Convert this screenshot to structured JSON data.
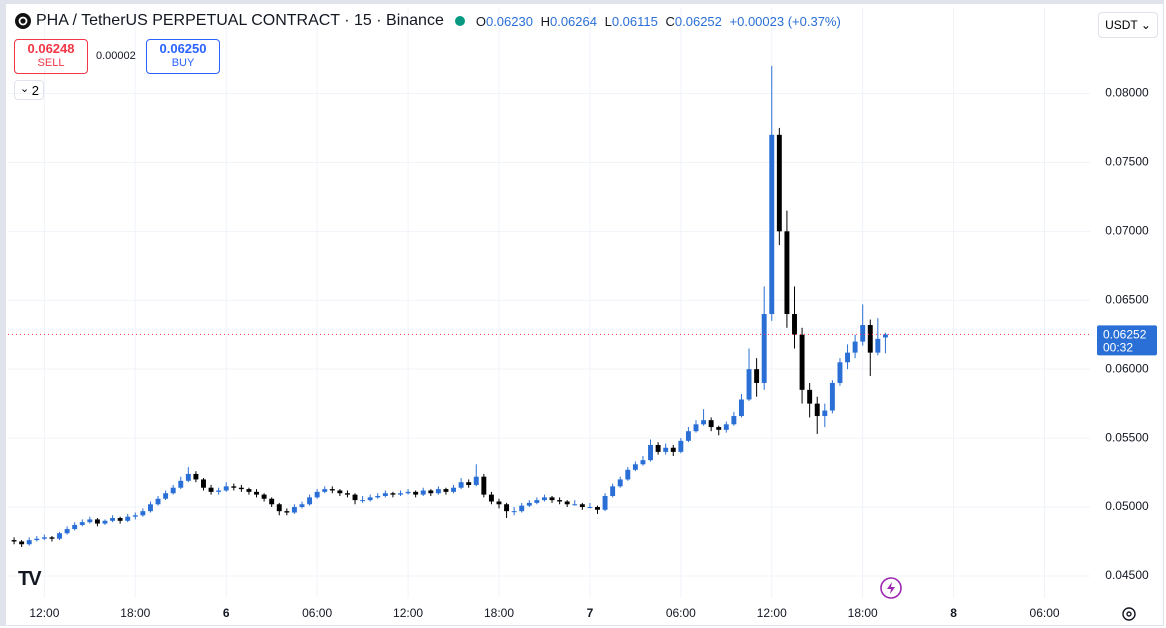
{
  "header": {
    "title": "PHA / TetherUS PERPETUAL CONTRACT · 15 · Binance",
    "o_label": "O",
    "o": "0.06230",
    "h_label": "H",
    "h": "0.06264",
    "l_label": "L",
    "l": "0.06115",
    "c_label": "C",
    "c": "0.06252",
    "change": "+0.00023 (+0.37%)"
  },
  "trade": {
    "sell_price": "0.06248",
    "sell": "SELL",
    "spread": "0.00002",
    "buy_price": "0.06250",
    "buy": "BUY",
    "indicators": "2"
  },
  "currency": "USDT",
  "chart_data": {
    "type": "candlestick",
    "up_color": "#2a6fd6",
    "down_color": "#000000",
    "grid": true,
    "last_price": 0.06252,
    "countdown": "00:32",
    "xlim": [
      9.6,
      81
    ],
    "ylim": [
      0.0434,
      0.0862
    ],
    "xticks": [
      {
        "value": 12,
        "label": "12:00"
      },
      {
        "value": 18,
        "label": "18:00"
      },
      {
        "value": 24,
        "label": "6"
      },
      {
        "value": 30,
        "label": "06:00"
      },
      {
        "value": 36,
        "label": "12:00"
      },
      {
        "value": 42,
        "label": "18:00"
      },
      {
        "value": 48,
        "label": "7"
      },
      {
        "value": 54,
        "label": "06:00"
      },
      {
        "value": 60,
        "label": "12:00"
      },
      {
        "value": 66,
        "label": "18:00"
      },
      {
        "value": 72,
        "label": "8"
      },
      {
        "value": 78,
        "label": "06:00"
      }
    ],
    "yticks": [
      {
        "value": 0.045,
        "label": "0.04500"
      },
      {
        "value": 0.05,
        "label": "0.05000"
      },
      {
        "value": 0.055,
        "label": "0.05500"
      },
      {
        "value": 0.06,
        "label": "0.06000"
      },
      {
        "value": 0.065,
        "label": "0.06500"
      },
      {
        "value": 0.07,
        "label": "0.07000"
      },
      {
        "value": 0.075,
        "label": "0.07500"
      },
      {
        "value": 0.08,
        "label": "0.08000"
      }
    ],
    "x": [
      10,
      10.5,
      11,
      11.5,
      12,
      12.5,
      13,
      13.5,
      14,
      14.5,
      15,
      15.5,
      16,
      16.5,
      17,
      17.5,
      18,
      18.5,
      19,
      19.5,
      20,
      20.5,
      21,
      21.5,
      22,
      22.5,
      23,
      23.5,
      24,
      24.5,
      25,
      25.5,
      26,
      26.5,
      27,
      27.5,
      28,
      28.5,
      29,
      29.5,
      30,
      30.5,
      31,
      31.5,
      32,
      32.5,
      33,
      33.5,
      34,
      34.5,
      35,
      35.5,
      36,
      36.5,
      37,
      37.5,
      38,
      38.5,
      39,
      39.5,
      40,
      40.5,
      41,
      41.5,
      42,
      42.5,
      43,
      43.5,
      44,
      44.5,
      45,
      45.5,
      46,
      46.5,
      47,
      47.5,
      48,
      48.5,
      49,
      49.5,
      50,
      50.5,
      51,
      51.5,
      52,
      52.5,
      53,
      53.5,
      54,
      54.5,
      55,
      55.5,
      56,
      56.5,
      57,
      57.5,
      58,
      58.5,
      59,
      59.5,
      60,
      60.5,
      61,
      61.5,
      62,
      62.5,
      63,
      63.5,
      64,
      64.5,
      65,
      65.5,
      66,
      66.5,
      67,
      67.5
    ],
    "ohlc": [
      [
        0.0476,
        0.0478,
        0.0473,
        0.0475
      ],
      [
        0.0475,
        0.0476,
        0.0471,
        0.0473
      ],
      [
        0.0473,
        0.0478,
        0.0472,
        0.0476
      ],
      [
        0.0476,
        0.0479,
        0.0475,
        0.0477
      ],
      [
        0.0477,
        0.048,
        0.0476,
        0.0478
      ],
      [
        0.0478,
        0.0479,
        0.0475,
        0.0477
      ],
      [
        0.0477,
        0.0482,
        0.0476,
        0.0481
      ],
      [
        0.0481,
        0.0486,
        0.048,
        0.0484
      ],
      [
        0.0484,
        0.0489,
        0.0483,
        0.0487
      ],
      [
        0.0487,
        0.0491,
        0.0486,
        0.0489
      ],
      [
        0.0489,
        0.0493,
        0.0488,
        0.0491
      ],
      [
        0.0491,
        0.0492,
        0.0486,
        0.0488
      ],
      [
        0.0488,
        0.0491,
        0.0487,
        0.049
      ],
      [
        0.049,
        0.0494,
        0.0489,
        0.0492
      ],
      [
        0.0492,
        0.0493,
        0.0488,
        0.049
      ],
      [
        0.049,
        0.0495,
        0.0489,
        0.0493
      ],
      [
        0.0493,
        0.0496,
        0.0491,
        0.0494
      ],
      [
        0.0494,
        0.0499,
        0.0493,
        0.0497
      ],
      [
        0.0497,
        0.0504,
        0.0496,
        0.0502
      ],
      [
        0.0502,
        0.0508,
        0.0501,
        0.0506
      ],
      [
        0.0506,
        0.0512,
        0.0505,
        0.051
      ],
      [
        0.051,
        0.0516,
        0.0509,
        0.0514
      ],
      [
        0.0514,
        0.0522,
        0.0513,
        0.0519
      ],
      [
        0.0519,
        0.0529,
        0.0518,
        0.0524
      ],
      [
        0.0524,
        0.0526,
        0.0518,
        0.052
      ],
      [
        0.052,
        0.0521,
        0.0512,
        0.0514
      ],
      [
        0.0514,
        0.0516,
        0.0509,
        0.0511
      ],
      [
        0.0511,
        0.0514,
        0.0509,
        0.0512
      ],
      [
        0.0512,
        0.0518,
        0.0511,
        0.0515
      ],
      [
        0.0515,
        0.0517,
        0.0512,
        0.0514
      ],
      [
        0.0514,
        0.0516,
        0.0511,
        0.0513
      ],
      [
        0.0513,
        0.0514,
        0.0509,
        0.0511
      ],
      [
        0.0511,
        0.0513,
        0.0507,
        0.0509
      ],
      [
        0.0509,
        0.051,
        0.0504,
        0.0506
      ],
      [
        0.0506,
        0.0507,
        0.05,
        0.0502
      ],
      [
        0.0502,
        0.0503,
        0.0494,
        0.0497
      ],
      [
        0.0497,
        0.0499,
        0.0494,
        0.0496
      ],
      [
        0.0496,
        0.0502,
        0.0495,
        0.05
      ],
      [
        0.05,
        0.0504,
        0.0499,
        0.0502
      ],
      [
        0.0502,
        0.0509,
        0.0501,
        0.0507
      ],
      [
        0.0507,
        0.0513,
        0.0506,
        0.0511
      ],
      [
        0.0511,
        0.0515,
        0.051,
        0.0513
      ],
      [
        0.0513,
        0.0515,
        0.051,
        0.0512
      ],
      [
        0.0512,
        0.0513,
        0.0508,
        0.051
      ],
      [
        0.051,
        0.0512,
        0.0507,
        0.0509
      ],
      [
        0.0509,
        0.051,
        0.0502,
        0.0505
      ],
      [
        0.0505,
        0.0508,
        0.0503,
        0.0505
      ],
      [
        0.0505,
        0.0509,
        0.0504,
        0.0507
      ],
      [
        0.0507,
        0.051,
        0.0506,
        0.0508
      ],
      [
        0.0508,
        0.0512,
        0.0507,
        0.051
      ],
      [
        0.051,
        0.0511,
        0.0507,
        0.0509
      ],
      [
        0.0509,
        0.0512,
        0.0508,
        0.051
      ],
      [
        0.051,
        0.0513,
        0.0509,
        0.0511
      ],
      [
        0.0511,
        0.0512,
        0.0507,
        0.0509
      ],
      [
        0.0509,
        0.0514,
        0.0508,
        0.0512
      ],
      [
        0.0512,
        0.0513,
        0.0508,
        0.051
      ],
      [
        0.051,
        0.0515,
        0.0509,
        0.0513
      ],
      [
        0.0513,
        0.0514,
        0.0509,
        0.0511
      ],
      [
        0.0511,
        0.0516,
        0.051,
        0.0514
      ],
      [
        0.0514,
        0.0521,
        0.0513,
        0.0518
      ],
      [
        0.0518,
        0.052,
        0.0514,
        0.0516
      ],
      [
        0.0516,
        0.0531,
        0.0515,
        0.0522
      ],
      [
        0.0522,
        0.0524,
        0.0507,
        0.0509
      ],
      [
        0.0509,
        0.0511,
        0.0502,
        0.0504
      ],
      [
        0.0504,
        0.0506,
        0.0499,
        0.0502
      ],
      [
        0.0502,
        0.0503,
        0.0492,
        0.0497
      ],
      [
        0.0497,
        0.05,
        0.0494,
        0.0497
      ],
      [
        0.0497,
        0.0503,
        0.0496,
        0.0501
      ],
      [
        0.0501,
        0.0505,
        0.05,
        0.0503
      ],
      [
        0.0503,
        0.0507,
        0.0502,
        0.0505
      ],
      [
        0.0505,
        0.0509,
        0.0504,
        0.0507
      ],
      [
        0.0507,
        0.0508,
        0.0503,
        0.0505
      ],
      [
        0.0505,
        0.0507,
        0.0502,
        0.0504
      ],
      [
        0.0504,
        0.0505,
        0.05,
        0.0502
      ],
      [
        0.0502,
        0.0505,
        0.0501,
        0.0502
      ],
      [
        0.0502,
        0.0503,
        0.0498,
        0.05
      ],
      [
        0.05,
        0.0503,
        0.0499,
        0.05
      ],
      [
        0.05,
        0.0501,
        0.0495,
        0.0498
      ],
      [
        0.0498,
        0.051,
        0.0497,
        0.0508
      ],
      [
        0.0508,
        0.0517,
        0.0507,
        0.0515
      ],
      [
        0.0515,
        0.0522,
        0.0514,
        0.052
      ],
      [
        0.052,
        0.0529,
        0.0519,
        0.0527
      ],
      [
        0.0527,
        0.0533,
        0.0526,
        0.0531
      ],
      [
        0.0531,
        0.0537,
        0.053,
        0.0534
      ],
      [
        0.0534,
        0.0549,
        0.0533,
        0.0545
      ],
      [
        0.0545,
        0.0547,
        0.0538,
        0.054
      ],
      [
        0.054,
        0.0546,
        0.0538,
        0.0543
      ],
      [
        0.0543,
        0.0545,
        0.0537,
        0.054
      ],
      [
        0.054,
        0.055,
        0.0539,
        0.0548
      ],
      [
        0.0548,
        0.0558,
        0.0547,
        0.0555
      ],
      [
        0.0555,
        0.0563,
        0.0554,
        0.056
      ],
      [
        0.056,
        0.0571,
        0.0559,
        0.0563
      ],
      [
        0.0563,
        0.0565,
        0.0555,
        0.0558
      ],
      [
        0.0558,
        0.0559,
        0.0552,
        0.0556
      ],
      [
        0.0556,
        0.0562,
        0.0554,
        0.056
      ],
      [
        0.056,
        0.0569,
        0.0559,
        0.0566
      ],
      [
        0.0566,
        0.0582,
        0.0565,
        0.0578
      ],
      [
        0.0578,
        0.0615,
        0.0577,
        0.06
      ],
      [
        0.06,
        0.0608,
        0.058,
        0.059
      ],
      [
        0.059,
        0.066,
        0.0585,
        0.064
      ],
      [
        0.064,
        0.082,
        0.0635,
        0.077
      ],
      [
        0.077,
        0.0775,
        0.069,
        0.07
      ],
      [
        0.07,
        0.0715,
        0.063,
        0.064
      ],
      [
        0.064,
        0.066,
        0.0615,
        0.0625
      ],
      [
        0.0625,
        0.063,
        0.0575,
        0.0585
      ],
      [
        0.0585,
        0.059,
        0.0565,
        0.0575
      ],
      [
        0.0575,
        0.058,
        0.0553,
        0.0566
      ],
      [
        0.0566,
        0.0575,
        0.0558,
        0.057
      ],
      [
        0.057,
        0.0592,
        0.0568,
        0.059
      ],
      [
        0.059,
        0.0608,
        0.0588,
        0.0605
      ],
      [
        0.0605,
        0.0618,
        0.06,
        0.0612
      ],
      [
        0.0612,
        0.0625,
        0.0608,
        0.062
      ],
      [
        0.062,
        0.0647,
        0.0617,
        0.0632
      ],
      [
        0.0632,
        0.0636,
        0.0595,
        0.0612
      ],
      [
        0.0612,
        0.0637,
        0.061,
        0.0622
      ],
      [
        0.0623,
        0.06264,
        0.06115,
        0.06252
      ]
    ]
  }
}
